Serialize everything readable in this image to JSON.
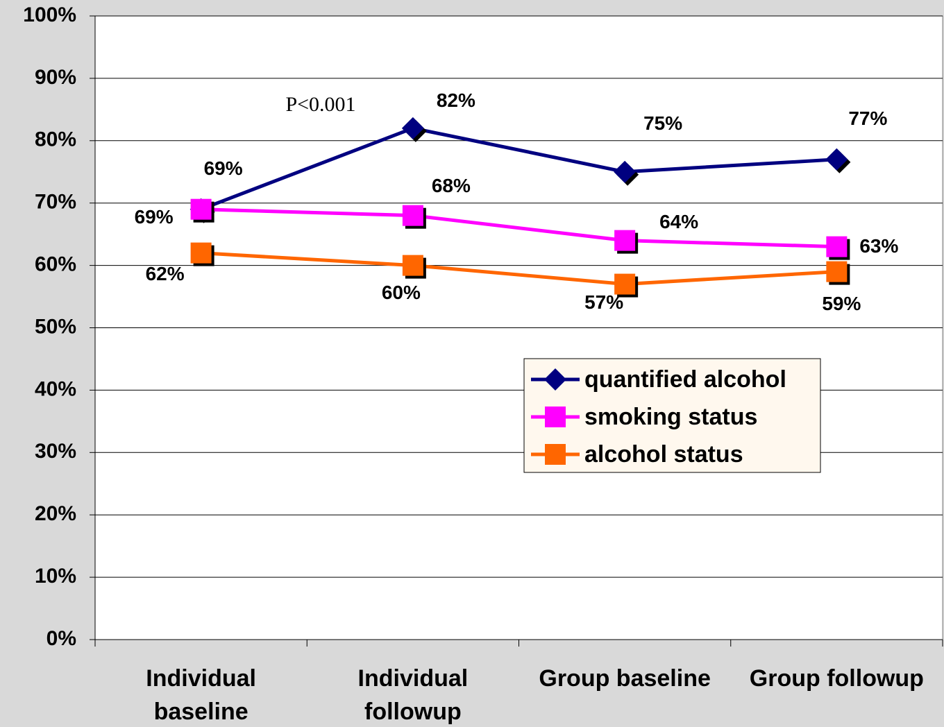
{
  "chart_data": {
    "type": "line",
    "categories": [
      "Individual baseline",
      "Individual followup",
      "Group baseline",
      "Group followup"
    ],
    "series": [
      {
        "name": "quantified alcohol",
        "color": "#000080",
        "marker": "diamond",
        "values": [
          69,
          82,
          75,
          77
        ],
        "value_labels": [
          "69%",
          "82%",
          "75%",
          "77%"
        ]
      },
      {
        "name": "smoking status",
        "color": "#ff00ff",
        "marker": "square",
        "values": [
          69,
          68,
          64,
          63
        ],
        "value_labels": [
          "69%",
          "68%",
          "64%",
          "63%"
        ]
      },
      {
        "name": "alcohol status",
        "color": "#ff6600",
        "marker": "square",
        "values": [
          62,
          60,
          57,
          59
        ],
        "value_labels": [
          "62%",
          "60%",
          "57%",
          "59%"
        ]
      }
    ],
    "annotation": "P<0.001",
    "ylim": [
      0,
      100
    ],
    "yticks": [
      {
        "value": 0,
        "label": "0%"
      },
      {
        "value": 10,
        "label": "10%"
      },
      {
        "value": 20,
        "label": "20%"
      },
      {
        "value": 30,
        "label": "30%"
      },
      {
        "value": 40,
        "label": "40%"
      },
      {
        "value": 50,
        "label": "50%"
      },
      {
        "value": 60,
        "label": "60%"
      },
      {
        "value": 70,
        "label": "70%"
      },
      {
        "value": 80,
        "label": "80%"
      },
      {
        "value": 90,
        "label": "90%"
      },
      {
        "value": 100,
        "label": "100%"
      }
    ],
    "grid": true
  }
}
